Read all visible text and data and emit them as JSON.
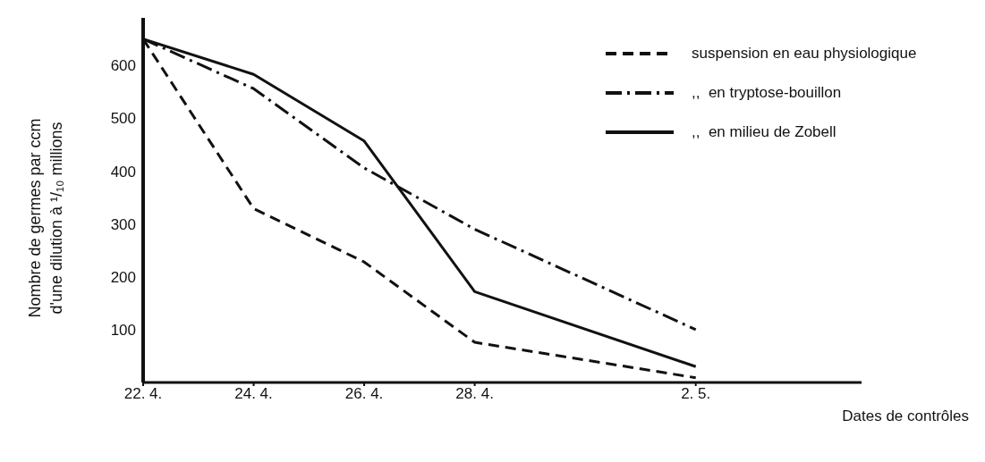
{
  "chart_data": {
    "type": "line",
    "ylabel": "Nombre de germes par ccm\nd'une dilution à ¹/₁₀ millions",
    "xlabel": "Dates de contrôles",
    "x": [
      "--04-22",
      "--04-24",
      "--04-26",
      "--04-28",
      "--05-02"
    ],
    "xlim": [
      "--04-22",
      "--05-05"
    ],
    "xticks": [
      {
        "value": "--04-22",
        "label": "22. 4."
      },
      {
        "value": "--04-24",
        "label": "24. 4."
      },
      {
        "value": "--04-26",
        "label": "26. 4."
      },
      {
        "value": "--04-28",
        "label": "28. 4."
      },
      {
        "value": "--05-02",
        "label": "2. 5."
      }
    ],
    "ylim": [
      0,
      690
    ],
    "yticks": [
      100,
      200,
      300,
      400,
      500,
      600
    ],
    "series": [
      {
        "name": "suspension en eau physiologique",
        "color": "#111111",
        "line_style": "dashed",
        "values": [
          650,
          329,
          228,
          76,
          9
        ]
      },
      {
        "name": ",,  en tryptose-bouillon",
        "color": "#111111",
        "line_style": "dashdot",
        "values": [
          650,
          556,
          406,
          290,
          100
        ]
      },
      {
        "name": ",,  en milieu de Zobell",
        "color": "#111111",
        "line_style": "solid",
        "values": [
          650,
          583,
          457,
          172,
          30
        ]
      }
    ],
    "legend": "top right",
    "marker": "none"
  }
}
